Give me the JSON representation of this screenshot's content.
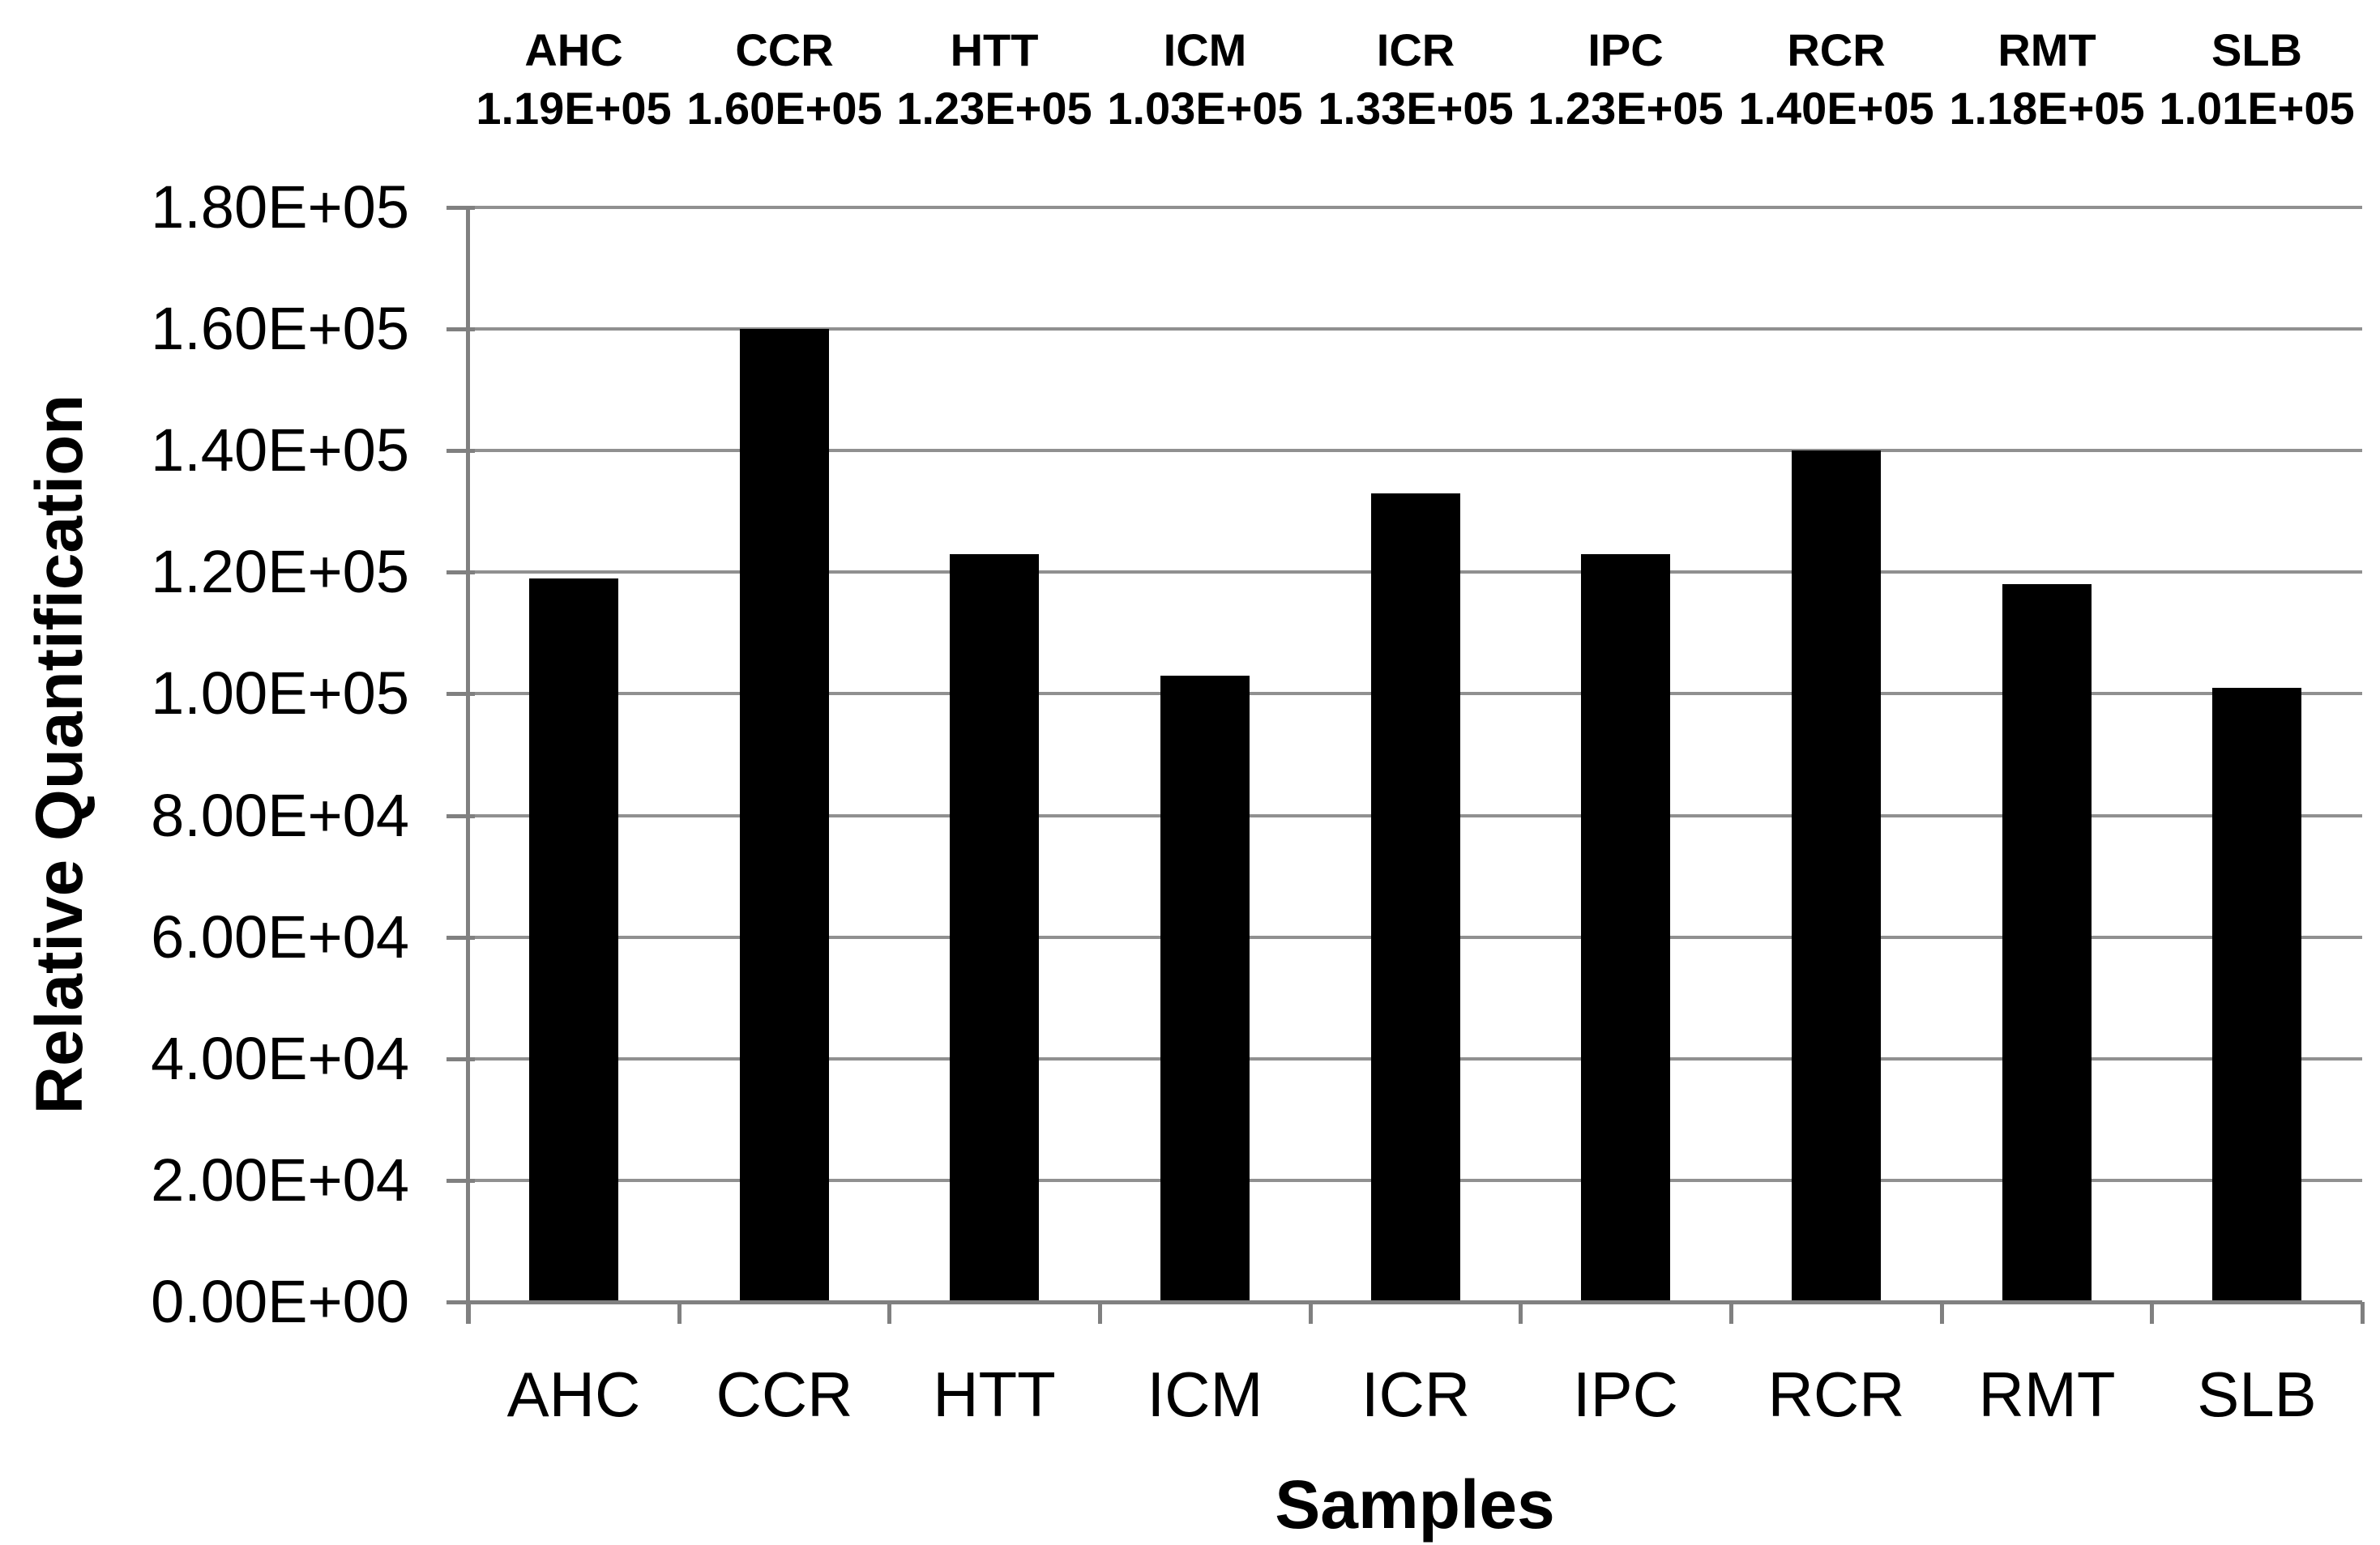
{
  "chart_data": {
    "type": "bar",
    "categories": [
      "AHC",
      "CCR",
      "HTT",
      "ICM",
      "ICR",
      "IPC",
      "RCR",
      "RMT",
      "SLB"
    ],
    "values": [
      119000,
      160000,
      123000,
      103000,
      133000,
      123000,
      140000,
      118000,
      101000
    ],
    "bar_value_labels": [
      "1.19E+05",
      "1.60E+05",
      "1.23E+05",
      "1.03E+05",
      "1.33E+05",
      "1.23E+05",
      "1.40E+05",
      "1.18E+05",
      "1.01E+05"
    ],
    "header_rows_shown": true,
    "xlabel": "Samples",
    "ylabel": "Relative Quantification",
    "ylim": [
      0,
      180000
    ],
    "ytick_interval": 20000,
    "ytick_labels": [
      "0.00E+00",
      "2.00E+04",
      "4.00E+04",
      "6.00E+04",
      "8.00E+04",
      "1.00E+05",
      "1.20E+05",
      "1.40E+05",
      "1.60E+05",
      "1.80E+05"
    ],
    "grid": true,
    "legend": "none",
    "bar_color": "#000000",
    "gridline_color": "#909090",
    "axis_color": "#808080",
    "text_color": "#000000",
    "background_color": "#ffffff"
  }
}
